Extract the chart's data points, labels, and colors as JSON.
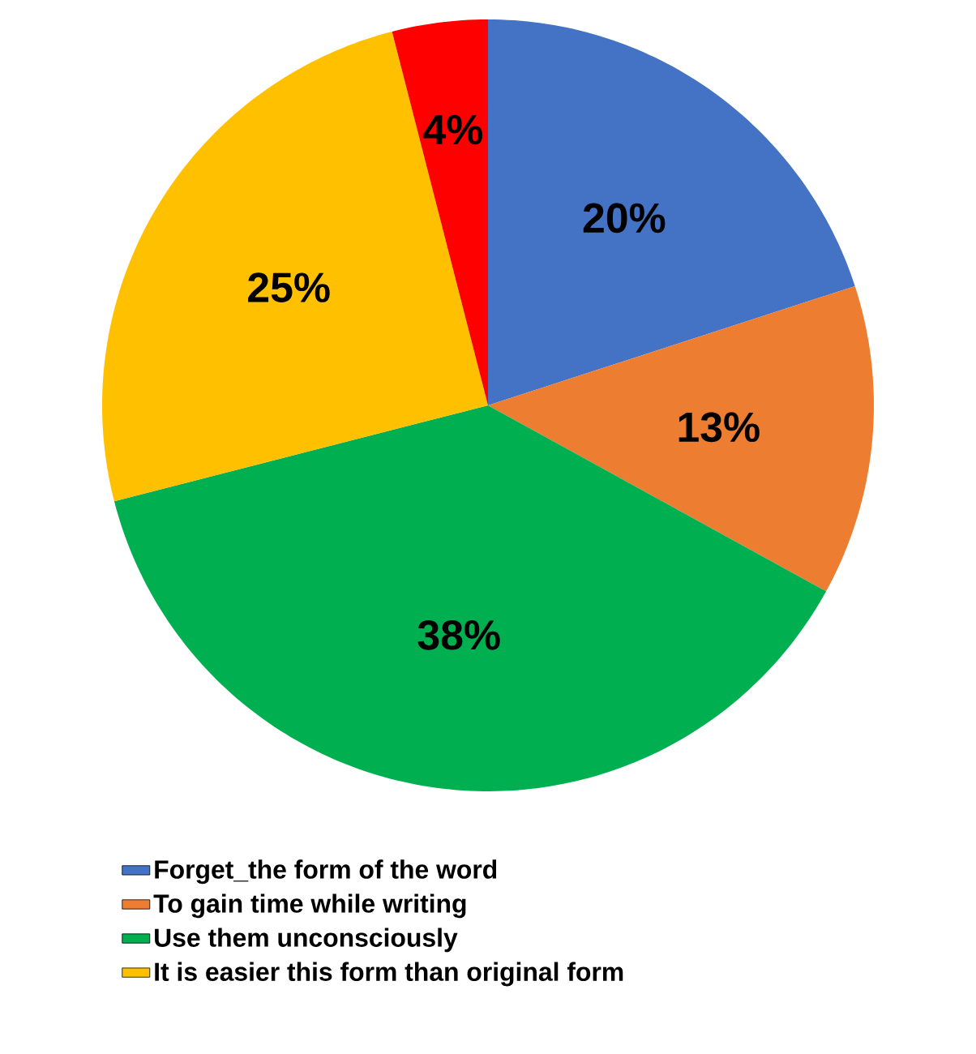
{
  "chart_data": {
    "type": "pie",
    "categories": [
      "Forget_the form of the word",
      "To gain time while writing",
      "Use them unconsciously",
      "It is easier this form than original form",
      null
    ],
    "values": [
      20,
      13,
      38,
      25,
      4
    ],
    "value_labels": [
      "20%",
      "13%",
      "38%",
      "25%",
      "4%"
    ],
    "colors": [
      "#4472c4",
      "#ed7d31",
      "#00b050",
      "#ffc000",
      "#ff0000"
    ],
    "legend": "bottom"
  }
}
